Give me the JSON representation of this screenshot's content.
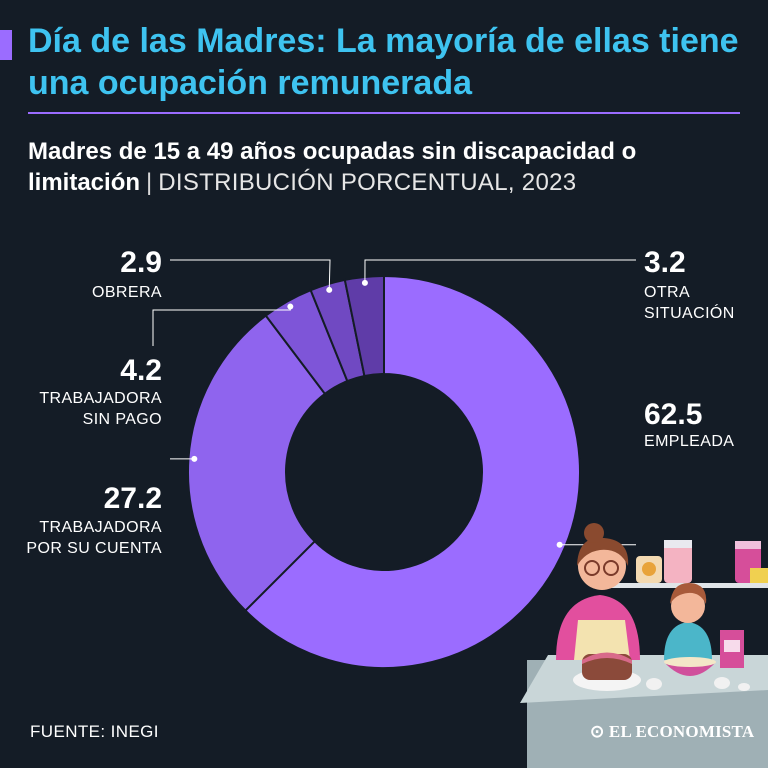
{
  "header": {
    "title": "Día de las Madres: La mayoría de ellas tiene una ocupación remunerada",
    "subtitle_bold": "Madres de 15 a 49 años ocupadas sin discapacidad o limitación",
    "subtitle_sep": "|",
    "subtitle_light": "DISTRIBUCIÓN PORCENTUAL, 2023"
  },
  "chart_data": {
    "type": "pie",
    "donut": true,
    "unit": "%",
    "slices": [
      {
        "label": "EMPLEADA",
        "value": 62.5,
        "display": "62.5",
        "color": "#9b6cff"
      },
      {
        "label": "TRABAJADORA POR SU CUENTA",
        "value": 27.2,
        "display": "27.2",
        "color": "#8f64ee"
      },
      {
        "label": "TRABAJADORA SIN PAGO",
        "value": 4.2,
        "display": "4.2",
        "color": "#7e55d8"
      },
      {
        "label": "OBRERA",
        "value": 2.9,
        "display": "2.9",
        "color": "#7049c2"
      },
      {
        "label": "OTRA SITUACIÓN",
        "value": 3.2,
        "display": "3.2",
        "color": "#5f3ca8"
      }
    ],
    "label_lines": {
      "EMPLEADA": [
        "EMPLEADA"
      ],
      "TRABAJADORA POR SU CUENTA": [
        "TRABAJADORA",
        "POR SU CUENTA"
      ],
      "TRABAJADORA SIN PAGO": [
        "TRABAJADORA",
        "SIN PAGO"
      ],
      "OBRERA": [
        "OBRERA"
      ],
      "OTRA SITUACIÓN": [
        "OTRA",
        "SITUACIÓN"
      ]
    }
  },
  "footer": {
    "source": "FUENTE: INEGI",
    "brand": "EL ECONOMISTA"
  },
  "colors": {
    "background": "#141c26",
    "title": "#3ec3f0",
    "accent": "#9b6cff"
  },
  "illustration": "mother-and-daughter-baking"
}
